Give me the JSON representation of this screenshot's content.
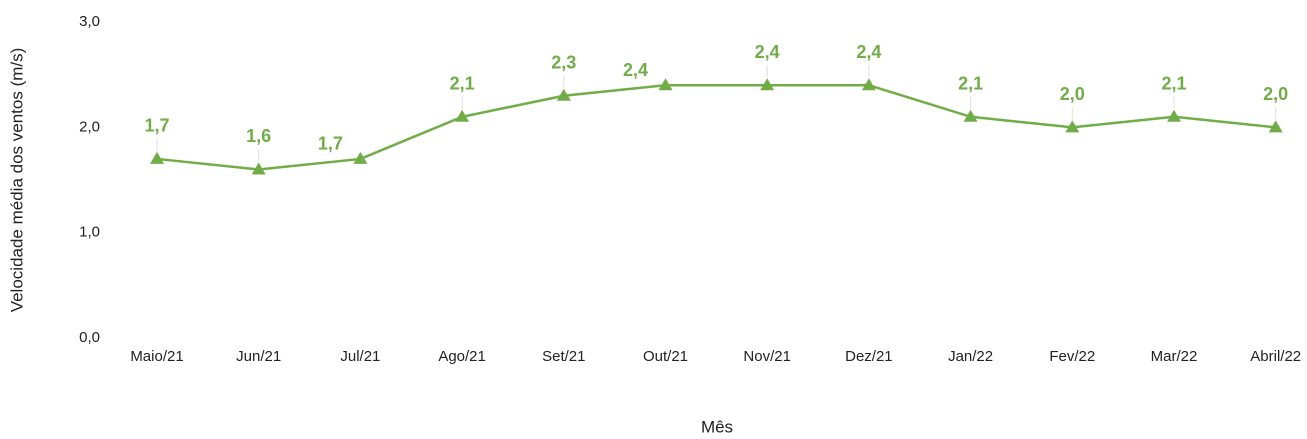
{
  "chart_data": {
    "type": "line",
    "x_label": "Mês",
    "y_label": "Velocidade média dos ventos (m/s)",
    "categories": [
      "Maio/21",
      "Jun/21",
      "Jul/21",
      "Ago/21",
      "Set/21",
      "Out/21",
      "Nov/21",
      "Dez/21",
      "Jan/22",
      "Fev/22",
      "Mar/22",
      "Abril/22"
    ],
    "values": [
      1.7,
      1.6,
      1.7,
      2.1,
      2.3,
      2.4,
      2.4,
      2.4,
      2.1,
      2.0,
      2.1,
      2.0
    ],
    "value_labels": [
      "1,7",
      "1,6",
      "1,7",
      "2,1",
      "2,3",
      "2,4",
      "2,4",
      "2,4",
      "2,1",
      "2,0",
      "2,1",
      "2,0"
    ],
    "color": "#70ad47",
    "marker": "triangle",
    "ylim": [
      0,
      3
    ],
    "yticks": [
      {
        "value": 0,
        "label": "0,0"
      },
      {
        "value": 1,
        "label": "1,0"
      },
      {
        "value": 2,
        "label": "2,0"
      },
      {
        "value": 3,
        "label": "3,0"
      }
    ],
    "grid": false
  }
}
